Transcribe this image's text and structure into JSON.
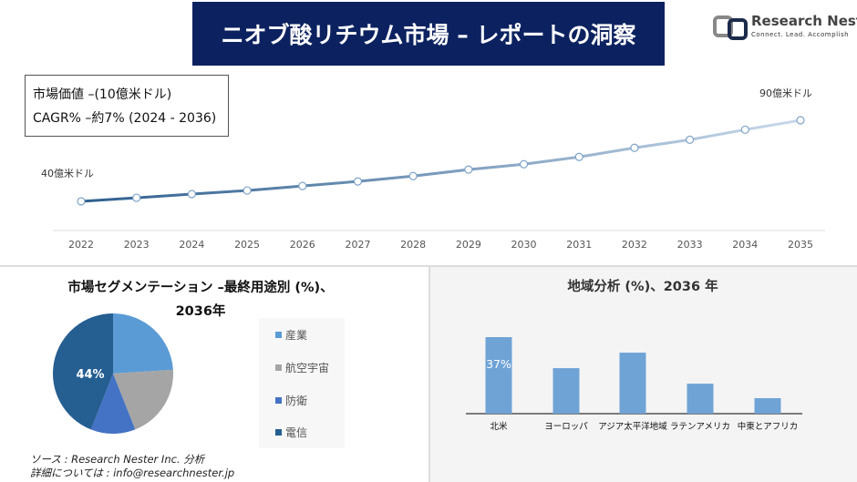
{
  "header": {
    "title": "ニオブ酸リチウム市場 – レポートの洞察"
  },
  "logo": {
    "name": "Research Nester",
    "tagline": "Connect. Lead. Accomplish"
  },
  "info": {
    "market_value": "市場価値 –(10億米ドル)",
    "cagr": "CAGR% –約7% (2024 - 2036)"
  },
  "source": {
    "line1": "ソース : Research Nester Inc. 分析",
    "line2": "詳細については : info@researchnester.jp"
  },
  "colors": {
    "navy": "#0c2260",
    "line_start": "#2e5f8f",
    "line_end": "#c9d9ea",
    "bar": "#6fa3d6"
  },
  "chart_data": [
    {
      "type": "line",
      "title": "",
      "x": [
        2022,
        2023,
        2024,
        2025,
        2026,
        2027,
        2028,
        2029,
        2030,
        2031,
        2032,
        2033,
        2034,
        2035
      ],
      "values": [
        40,
        42.2,
        44.5,
        46.7,
        49.5,
        52.3,
        55.6,
        59.6,
        62.9,
        67.4,
        73,
        78,
        84.2,
        90
      ],
      "start_label": "40億米ドル",
      "end_label": "90億米ドル",
      "xlabel": "",
      "ylabel": ""
    },
    {
      "type": "pie",
      "title": "市場セグメンテーション –最終用途別 (%)、",
      "title2": "2036年",
      "categories": [
        "産業",
        "航空宇宙",
        "防衛",
        "電信"
      ],
      "values": [
        24,
        20,
        12,
        44
      ],
      "colors": [
        "#5b9bd5",
        "#a5a5a5",
        "#4472c4",
        "#255e91"
      ],
      "data_label": "44%",
      "legend": "right"
    },
    {
      "type": "bar",
      "title": "地域分析 (%)、2036 年",
      "categories": [
        "北米",
        "ヨーロッパ",
        "アジア太平洋地域",
        "ラテンアメリカ",
        "中東とアフリカ"
      ],
      "values": [
        37,
        22,
        29.5,
        14.5,
        7.5
      ],
      "data_label": "37%",
      "ylim": [
        0,
        40
      ]
    }
  ]
}
